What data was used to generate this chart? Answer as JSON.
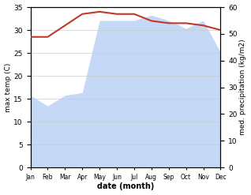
{
  "months": [
    "Jan",
    "Feb",
    "Mar",
    "Apr",
    "May",
    "Jun",
    "Jul",
    "Aug",
    "Sep",
    "Oct",
    "Nov",
    "Dec"
  ],
  "temp": [
    28.5,
    28.5,
    31.0,
    33.5,
    34.0,
    33.5,
    33.5,
    32.0,
    31.5,
    31.5,
    31.0,
    30.0
  ],
  "precip": [
    27,
    23,
    27,
    28,
    55,
    55,
    55,
    57,
    55,
    52,
    55,
    43
  ],
  "temp_color": "#c0392b",
  "precip_fill_color": "#c5d8f5",
  "ylabel_left": "max temp (C)",
  "ylabel_right": "med. precipitation (kg/m2)",
  "xlabel": "date (month)",
  "ylim_left": [
    0,
    35
  ],
  "ylim_right": [
    0,
    60
  ],
  "bg_color": "#ffffff",
  "grid_color": "#cccccc"
}
